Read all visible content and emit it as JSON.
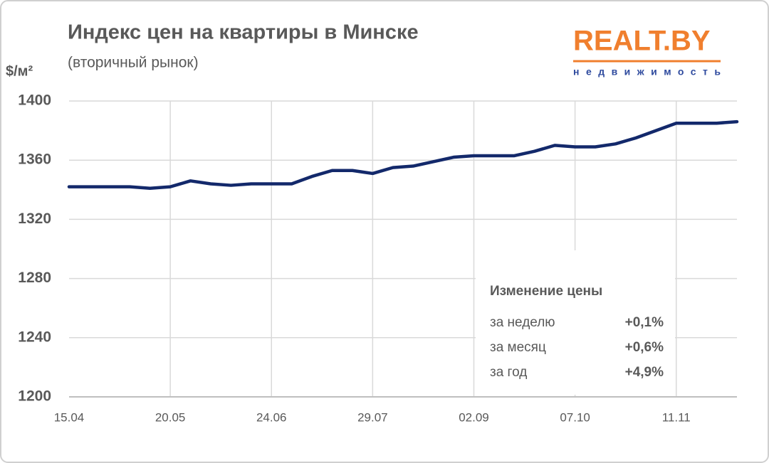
{
  "chart_data": {
    "type": "line",
    "title": "Индекс цен на квартиры в Минске",
    "subtitle": "(вторичный рынок)",
    "y_label": "$/м²",
    "logo": {
      "text": "REALT.BY",
      "tagline": "недвижимость"
    },
    "categories": [
      "15.04",
      null,
      null,
      null,
      null,
      "20.05",
      null,
      null,
      null,
      null,
      "24.06",
      null,
      null,
      null,
      null,
      "29.07",
      null,
      null,
      null,
      null,
      "02.09",
      null,
      null,
      null,
      null,
      "07.10",
      null,
      null,
      null,
      null,
      "11.11",
      null,
      null,
      null
    ],
    "series": [
      {
        "name": "Индекс цен",
        "color": "#13296b",
        "values": [
          1342,
          1342,
          1342,
          1342,
          1341,
          1342,
          1346,
          1344,
          1343,
          1344,
          1344,
          1344,
          1349,
          1353,
          1353,
          1351,
          1355,
          1356,
          1359,
          1362,
          1363,
          1363,
          1363,
          1366,
          1370,
          1369,
          1369,
          1371,
          1375,
          1380,
          1385,
          1385,
          1385,
          1386
        ]
      }
    ],
    "ylim": [
      1200,
      1400
    ],
    "yticks": [
      1200,
      1240,
      1280,
      1320,
      1360,
      1400
    ],
    "grid": true,
    "summary": {
      "title": "Изменение цены",
      "rows": [
        [
          "за неделю",
          "+0,1%"
        ],
        [
          "за месяц",
          "+0,6%"
        ],
        [
          "за год",
          "+4,9%"
        ]
      ]
    }
  }
}
